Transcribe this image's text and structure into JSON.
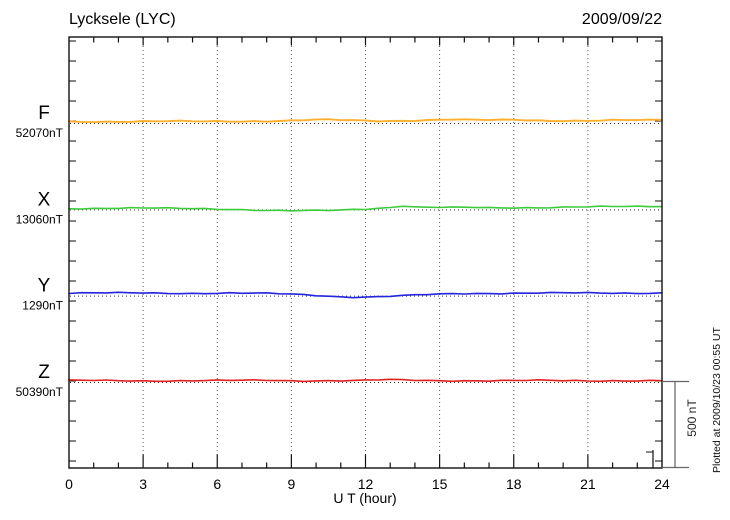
{
  "header": {
    "title": "Lycksele (LYC)",
    "date": "2009/09/22"
  },
  "chart_data": {
    "type": "line",
    "title": "Lycksele (LYC)",
    "date": "2009/09/22",
    "xlabel": "U T (hour)",
    "x_range": [
      0,
      24
    ],
    "x_major_ticks": [
      0,
      3,
      6,
      9,
      12,
      15,
      18,
      21,
      24
    ],
    "x_tick_labels": [
      "0",
      "3",
      "6",
      "9",
      "12",
      "15",
      "18",
      "21",
      "24"
    ],
    "x_minor_tick_step_hours": 1,
    "gridlines_at_hours": [
      3,
      6,
      9,
      12,
      15,
      18,
      21
    ],
    "grid": "dotted-vertical",
    "scale_bar_label": "500 nT",
    "scale_bar_nT": 500,
    "plotted_at": "Plotted at 2009/10/23 00:55 UT",
    "sample_step_hours": 0.5,
    "series_spacing_nT": 500,
    "series": [
      {
        "name": "F",
        "baseline_label": "52070nT",
        "baseline_nT": 52070,
        "color": "#FFB02E",
        "offsets_nT": [
          3,
          3,
          3,
          3,
          3,
          3,
          3,
          3,
          3,
          3,
          3,
          3,
          4,
          5,
          5,
          6,
          6,
          7,
          8,
          10,
          12,
          12,
          10,
          9,
          8,
          6,
          8,
          9,
          10,
          12,
          13,
          14,
          12,
          10,
          10,
          11,
          13,
          12,
          10,
          9,
          9,
          8,
          8,
          8,
          9,
          9,
          9,
          10,
          12
        ]
      },
      {
        "name": "X",
        "baseline_label": "13060nT",
        "baseline_nT": 13060,
        "color": "#3ECC3E",
        "offsets_nT": [
          0,
          0,
          0,
          0,
          0,
          0,
          0,
          0,
          0,
          0,
          0,
          0,
          -2,
          -4,
          -7,
          -10,
          -13,
          -15,
          -16,
          -15,
          -14,
          -12,
          -9,
          -5,
          -2,
          2,
          6,
          15,
          7,
          4,
          4,
          4,
          4,
          5,
          4,
          4,
          5,
          5,
          5,
          6,
          6,
          7,
          7,
          8,
          9,
          10,
          11,
          12,
          13
        ]
      },
      {
        "name": "Y",
        "baseline_label": "1290nT",
        "baseline_nT": 1290,
        "color": "#2525DD",
        "offsets_nT": [
          9,
          9,
          9,
          9,
          9,
          9,
          9,
          9,
          9,
          9,
          9,
          9,
          9,
          9,
          8,
          7,
          6,
          4,
          3,
          0,
          -3,
          -7,
          -11,
          -13,
          -13,
          -12,
          -9,
          -7,
          -4,
          -1,
          2,
          5,
          7,
          8,
          9,
          9,
          9,
          9,
          9,
          9,
          9,
          9,
          9,
          9,
          9,
          10,
          10,
          11,
          11
        ]
      },
      {
        "name": "Z",
        "baseline_label": "50390nT",
        "baseline_nT": 50390,
        "color": "#DD2222",
        "offsets_nT": [
          2,
          2,
          2,
          2,
          2,
          2,
          2,
          2,
          2,
          2,
          2,
          2,
          2,
          2,
          2,
          3,
          4,
          3,
          2,
          2,
          3,
          3,
          2,
          2,
          3,
          5,
          6,
          5,
          4,
          3,
          3,
          3,
          3,
          3,
          2,
          2,
          2,
          2,
          2,
          2,
          1,
          2,
          2,
          2,
          3,
          3,
          2,
          2,
          2
        ]
      }
    ]
  }
}
